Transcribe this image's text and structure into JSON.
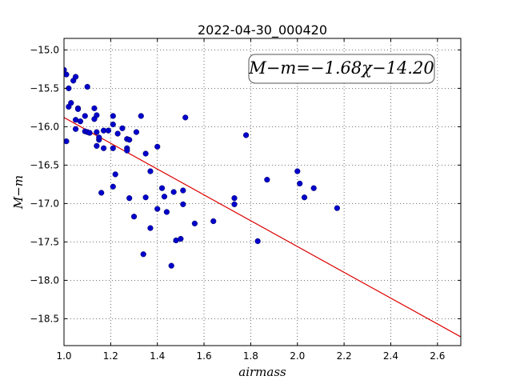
{
  "chart_data": {
    "type": "scatter",
    "title": "2022-04-30_000420",
    "xlabel": "airmass",
    "ylabel": "M−m",
    "xlim": [
      1.0,
      2.7
    ],
    "ylim": [
      -18.85,
      -14.85
    ],
    "x_ticks": [
      1.0,
      1.2,
      1.4,
      1.6,
      1.8,
      2.0,
      2.2,
      2.4,
      2.6
    ],
    "x_tick_labels": [
      "1.0",
      "1.2",
      "1.4",
      "1.6",
      "1.8",
      "2.0",
      "2.2",
      "2.4",
      "2.6"
    ],
    "y_ticks": [
      -15.0,
      -15.5,
      -16.0,
      -16.5,
      -17.0,
      -17.5,
      -18.0,
      -18.5
    ],
    "y_tick_labels": [
      "−15.0",
      "−15.5",
      "−16.0",
      "−16.5",
      "−17.0",
      "−17.5",
      "−18.0",
      "−18.5"
    ],
    "grid": true,
    "point_color": "#0000cc",
    "fit_color": "#dd0000",
    "fit": {
      "slope": -1.68,
      "intercept": -14.2,
      "x_range": [
        1.0,
        2.7
      ]
    },
    "annotation": "M−m=−1.68χ−14.20",
    "points": [
      [
        1.0,
        -15.26
      ],
      [
        1.01,
        -15.32
      ],
      [
        1.02,
        -15.5
      ],
      [
        1.01,
        -16.19
      ],
      [
        1.02,
        -15.74
      ],
      [
        1.03,
        -15.69
      ],
      [
        1.04,
        -15.4
      ],
      [
        1.05,
        -15.35
      ],
      [
        1.05,
        -15.91
      ],
      [
        1.05,
        -16.03
      ],
      [
        1.06,
        -15.76
      ],
      [
        1.06,
        -15.77
      ],
      [
        1.07,
        -15.93
      ],
      [
        1.09,
        -15.86
      ],
      [
        1.09,
        -16.06
      ],
      [
        1.1,
        -16.07
      ],
      [
        1.11,
        -16.08
      ],
      [
        1.1,
        -15.48
      ],
      [
        1.13,
        -15.9
      ],
      [
        1.13,
        -15.76
      ],
      [
        1.14,
        -15.85
      ],
      [
        1.14,
        -16.07
      ],
      [
        1.14,
        -16.25
      ],
      [
        1.15,
        -16.17
      ],
      [
        1.15,
        -16.14
      ],
      [
        1.16,
        -16.86
      ],
      [
        1.17,
        -16.05
      ],
      [
        1.17,
        -16.28
      ],
      [
        1.19,
        -16.05
      ],
      [
        1.21,
        -15.86
      ],
      [
        1.21,
        -15.97
      ],
      [
        1.21,
        -16.28
      ],
      [
        1.21,
        -16.78
      ],
      [
        1.22,
        -16.62
      ],
      [
        1.23,
        -16.09
      ],
      [
        1.25,
        -16.02
      ],
      [
        1.27,
        -16.16
      ],
      [
        1.27,
        -16.28
      ],
      [
        1.27,
        -16.31
      ],
      [
        1.28,
        -16.17
      ],
      [
        1.28,
        -16.93
      ],
      [
        1.3,
        -17.17
      ],
      [
        1.31,
        -16.07
      ],
      [
        1.33,
        -15.86
      ],
      [
        1.34,
        -17.66
      ],
      [
        1.35,
        -16.35
      ],
      [
        1.35,
        -16.92
      ],
      [
        1.37,
        -16.58
      ],
      [
        1.37,
        -17.32
      ],
      [
        1.4,
        -16.26
      ],
      [
        1.4,
        -17.07
      ],
      [
        1.42,
        -16.8
      ],
      [
        1.43,
        -16.91
      ],
      [
        1.44,
        -17.11
      ],
      [
        1.46,
        -17.81
      ],
      [
        1.47,
        -16.85
      ],
      [
        1.48,
        -17.48
      ],
      [
        1.5,
        -17.46
      ],
      [
        1.51,
        -16.83
      ],
      [
        1.51,
        -17.01
      ],
      [
        1.52,
        -15.88
      ],
      [
        1.56,
        -17.26
      ],
      [
        1.64,
        -17.23
      ],
      [
        1.73,
        -16.93
      ],
      [
        1.73,
        -17.01
      ],
      [
        1.78,
        -16.11
      ],
      [
        1.83,
        -17.49
      ],
      [
        1.87,
        -16.69
      ],
      [
        2.0,
        -16.58
      ],
      [
        2.01,
        -16.74
      ],
      [
        2.03,
        -16.92
      ],
      [
        2.07,
        -16.8
      ],
      [
        2.17,
        -17.06
      ]
    ]
  }
}
